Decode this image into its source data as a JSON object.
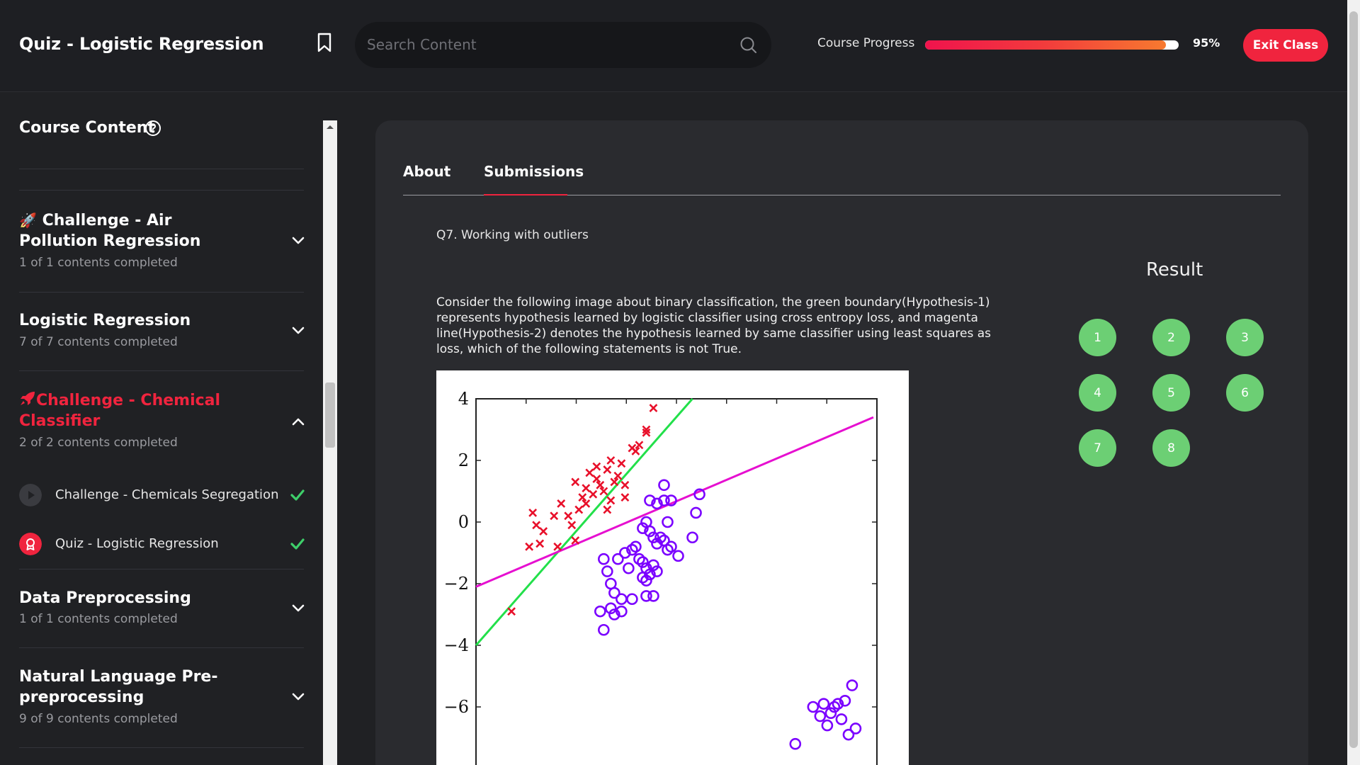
{
  "header": {
    "title": "Quiz - Logistic Regression",
    "search_placeholder": "Search Content",
    "progress_label": "Course Progress",
    "progress_value": 95,
    "progress_text": "95%",
    "exit_label": "Exit Class"
  },
  "sidebar": {
    "title": "Course Content",
    "sections": [
      {
        "emoji": "🚀",
        "title": "Challenge - Air Pollution Regression",
        "subtitle": "1 of 1 contents completed"
      },
      {
        "title": "Logistic Regression",
        "subtitle": "7 of 7 contents completed"
      },
      {
        "emoji": "🚀",
        "title": "Challenge - Chemical Classifier",
        "subtitle": "2 of 2 contents completed"
      },
      {
        "title": "Data Preprocessing",
        "subtitle": "1 of 1 contents completed"
      },
      {
        "title": "Natural Language Pre-preprocessing",
        "subtitle": "9 of 9 contents completed"
      }
    ],
    "lessons": [
      {
        "label": "Challenge - Chemicals Segregation"
      },
      {
        "label": "Quiz - Logistic Regression"
      }
    ]
  },
  "main": {
    "tabs": [
      "About",
      "Submissions"
    ],
    "question_title": "Q7. Working with outliers",
    "question_text": "Consider the following image about binary classification, the green boundary(Hypothesis-1) represents hypothesis learned by logistic classifier using cross entropy loss, and magenta line(Hypothesis-2) denotes the hypothesis learned by same classifier using least squares as loss, which of the following statements is not True.",
    "result_title": "Result",
    "result_buttons": [
      "1",
      "2",
      "3",
      "4",
      "5",
      "6",
      "7",
      "8"
    ]
  },
  "colors": {
    "accent": "#f0243e",
    "result_green": "#6ccf74",
    "check_green": "#3ecf6a"
  },
  "chart_data": {
    "type": "scatter",
    "title": "",
    "xlabel": "",
    "ylabel": "",
    "ylim": [
      -8,
      4
    ],
    "yticks": [
      "4",
      "2",
      "0",
      "−2",
      "−4",
      "−6"
    ],
    "series": [
      {
        "name": "class-x",
        "marker": "x",
        "color": "#e8102a",
        "points": [
          [
            -3.4,
            0.3
          ],
          [
            -3.3,
            -0.1
          ],
          [
            -3.1,
            -0.3
          ],
          [
            -3.2,
            -0.7
          ],
          [
            -2.8,
            0.2
          ],
          [
            -2.6,
            0.6
          ],
          [
            -2.4,
            0.2
          ],
          [
            -2.3,
            -0.1
          ],
          [
            -2.1,
            0.4
          ],
          [
            -2.0,
            0.8
          ],
          [
            -2.2,
            1.3
          ],
          [
            -1.9,
            1.1
          ],
          [
            -1.8,
            1.6
          ],
          [
            -1.7,
            0.9
          ],
          [
            -1.6,
            1.4
          ],
          [
            -1.5,
            1.2
          ],
          [
            -1.6,
            1.8
          ],
          [
            -1.4,
            1.0
          ],
          [
            -1.3,
            1.7
          ],
          [
            -1.2,
            2.0
          ],
          [
            -1.1,
            1.3
          ],
          [
            -1.2,
            0.7
          ],
          [
            -1.0,
            1.5
          ],
          [
            -0.9,
            1.9
          ],
          [
            -0.8,
            1.2
          ],
          [
            -0.8,
            0.8
          ],
          [
            -0.6,
            2.4
          ],
          [
            -0.5,
            2.3
          ],
          [
            -0.4,
            2.5
          ],
          [
            -0.2,
            2.9
          ],
          [
            -0.2,
            3.0
          ],
          [
            0.0,
            3.7
          ],
          [
            -2.2,
            -0.6
          ],
          [
            -1.9,
            0.6
          ],
          [
            -1.3,
            0.4
          ],
          [
            -4.0,
            -2.9
          ],
          [
            -3.5,
            -0.8
          ],
          [
            -2.7,
            -0.8
          ]
        ]
      },
      {
        "name": "class-o",
        "marker": "o",
        "color": "#7a00ff",
        "points": [
          [
            -1.0,
            -1.2
          ],
          [
            -0.8,
            -1.0
          ],
          [
            -0.6,
            -0.9
          ],
          [
            -0.5,
            -0.8
          ],
          [
            -0.7,
            -1.5
          ],
          [
            -0.4,
            -1.2
          ],
          [
            -0.3,
            -1.3
          ],
          [
            -0.2,
            -1.5
          ],
          [
            -0.1,
            -1.7
          ],
          [
            -0.3,
            -1.8
          ],
          [
            -0.2,
            -1.9
          ],
          [
            0.0,
            -1.4
          ],
          [
            0.1,
            -1.6
          ],
          [
            -1.4,
            -1.2
          ],
          [
            -1.3,
            -1.6
          ],
          [
            -1.2,
            -2.0
          ],
          [
            -1.1,
            -2.3
          ],
          [
            -0.9,
            -2.5
          ],
          [
            -0.6,
            -2.5
          ],
          [
            -1.5,
            -2.9
          ],
          [
            -1.2,
            -2.8
          ],
          [
            -1.1,
            -3.0
          ],
          [
            -0.9,
            -2.9
          ],
          [
            -1.4,
            -3.5
          ],
          [
            -0.3,
            -0.2
          ],
          [
            -0.2,
            0.0
          ],
          [
            -0.1,
            -0.3
          ],
          [
            0.0,
            -0.5
          ],
          [
            0.1,
            -0.7
          ],
          [
            0.2,
            -0.5
          ],
          [
            0.3,
            -0.6
          ],
          [
            0.4,
            -0.9
          ],
          [
            0.5,
            -0.8
          ],
          [
            -0.2,
            -2.4
          ],
          [
            0.0,
            -2.4
          ],
          [
            -0.1,
            0.7
          ],
          [
            0.1,
            0.6
          ],
          [
            0.3,
            0.7
          ],
          [
            0.5,
            0.7
          ],
          [
            0.3,
            1.2
          ],
          [
            0.4,
            0.0
          ],
          [
            1.3,
            0.9
          ],
          [
            1.2,
            0.3
          ],
          [
            1.1,
            -0.5
          ],
          [
            0.7,
            -1.1
          ],
          [
            4.0,
            -7.2
          ],
          [
            4.5,
            -6.0
          ],
          [
            4.7,
            -6.3
          ],
          [
            4.8,
            -5.9
          ],
          [
            4.9,
            -6.6
          ],
          [
            5.0,
            -6.2
          ],
          [
            5.1,
            -6.0
          ],
          [
            5.2,
            -5.9
          ],
          [
            5.3,
            -6.4
          ],
          [
            5.4,
            -5.8
          ],
          [
            5.5,
            -6.9
          ],
          [
            5.6,
            -5.3
          ],
          [
            5.7,
            -6.7
          ]
        ]
      }
    ],
    "lines": [
      {
        "name": "Hypothesis-1",
        "color": "#22e04a",
        "from": [
          -5.0,
          -4.0
        ],
        "to": [
          1.1,
          4.0
        ]
      },
      {
        "name": "Hypothesis-2",
        "color": "#e60fd0",
        "from": [
          -5.0,
          -2.1
        ],
        "to": [
          6.2,
          3.4
        ]
      }
    ]
  }
}
